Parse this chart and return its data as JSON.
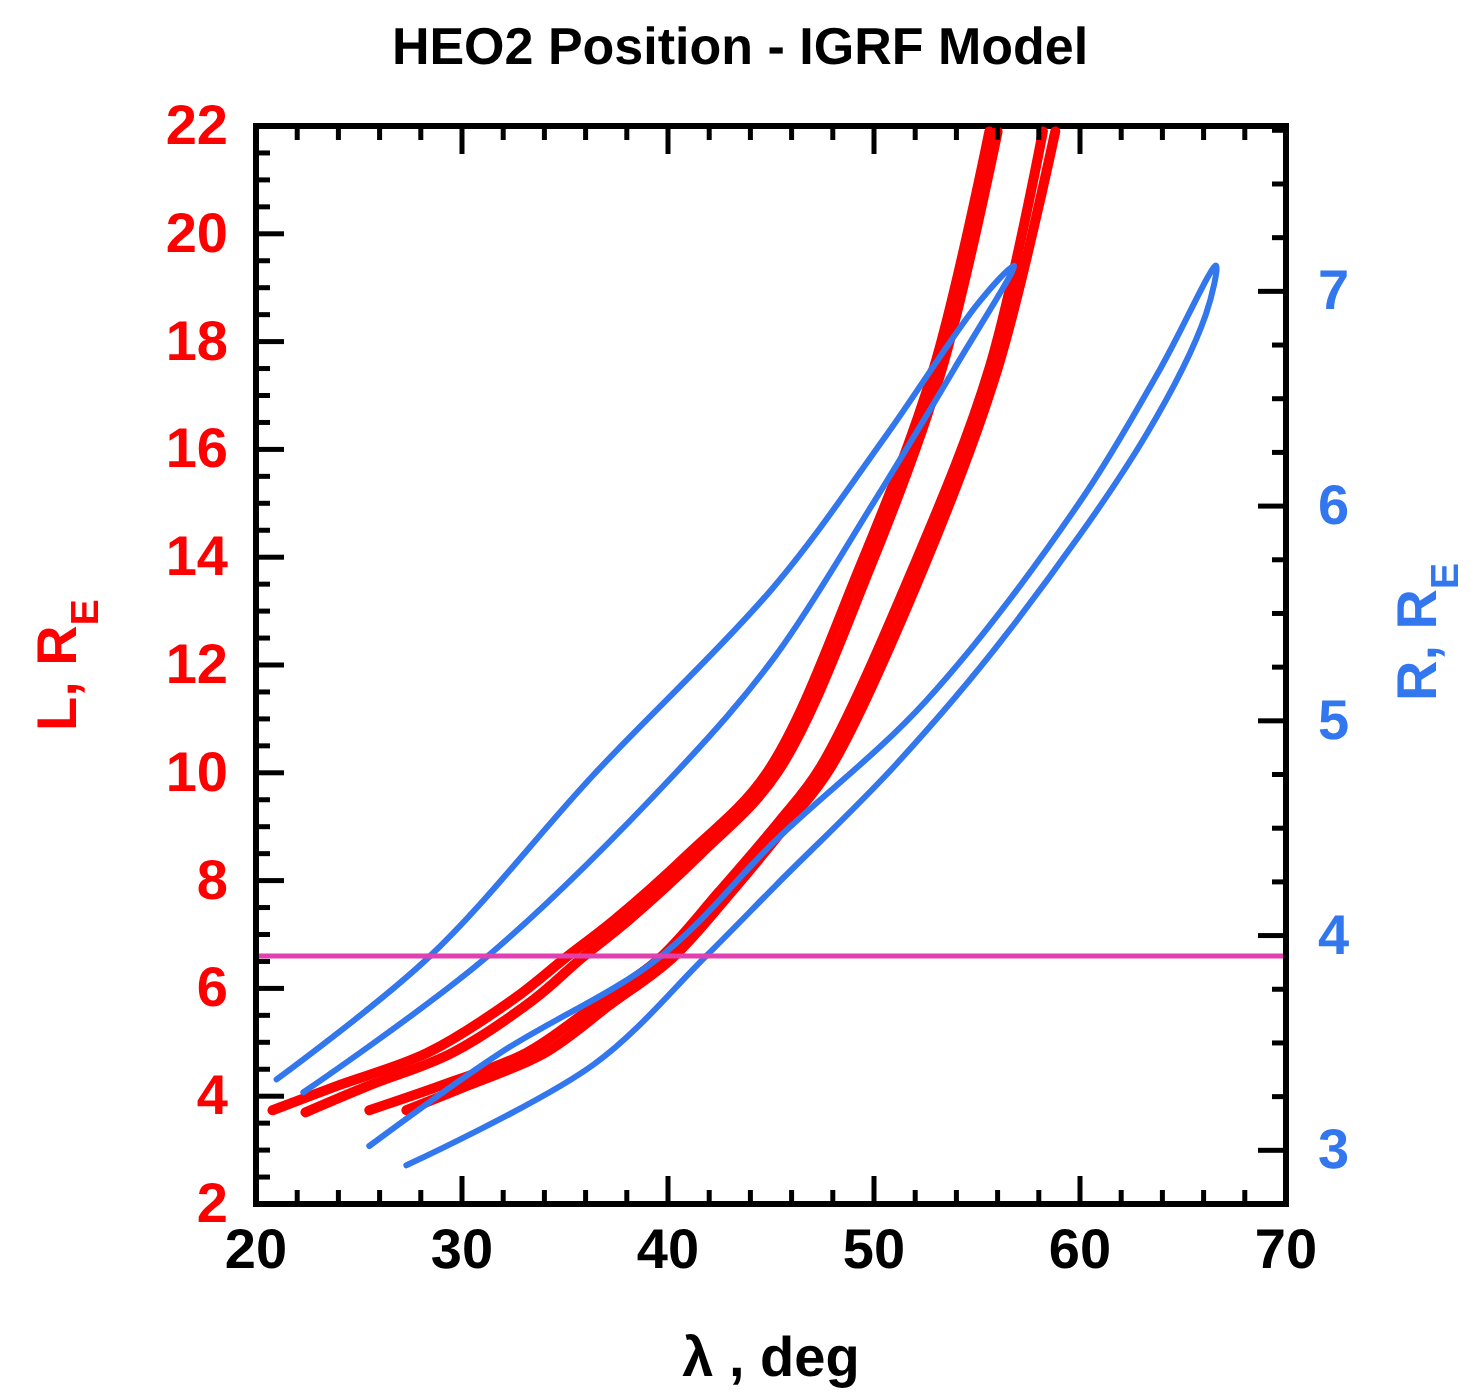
{
  "chart_data": {
    "type": "line",
    "title": "HEO2 Position - IGRF Model",
    "xlabel": "λ  , deg",
    "ylabel": "L, R$_{E}$",
    "y2label": "R, R$_{E}$",
    "xlim": [
      20,
      70
    ],
    "xticks": [
      20,
      {
        "value": 22,
        "label": null
      },
      {
        "value": 24,
        "label": null
      },
      {
        "value": 26,
        "label": null
      },
      {
        "value": 28,
        "label": null
      },
      30,
      {
        "value": 32,
        "label": null
      },
      {
        "value": 34,
        "label": null
      },
      {
        "value": 36,
        "label": null
      },
      {
        "value": 38,
        "label": null
      },
      40,
      {
        "value": 42,
        "label": null
      },
      {
        "value": 44,
        "label": null
      },
      {
        "value": 46,
        "label": null
      },
      {
        "value": 48,
        "label": null
      },
      50,
      {
        "value": 52,
        "label": null
      },
      {
        "value": 54,
        "label": null
      },
      {
        "value": 56,
        "label": null
      },
      {
        "value": 58,
        "label": null
      },
      60,
      {
        "value": 62,
        "label": null
      },
      {
        "value": 64,
        "label": null
      },
      {
        "value": 66,
        "label": null
      },
      {
        "value": 68,
        "label": null
      },
      70
    ],
    "ylim": [
      2,
      22
    ],
    "yticks": [
      2,
      {
        "value": 2.5,
        "label": null
      },
      {
        "value": 3,
        "label": null
      },
      {
        "value": 3.5,
        "label": null
      },
      4,
      {
        "value": 4.5,
        "label": null
      },
      {
        "value": 5,
        "label": null
      },
      {
        "value": 5.5,
        "label": null
      },
      6,
      {
        "value": 6.5,
        "label": null
      },
      {
        "value": 7,
        "label": null
      },
      {
        "value": 7.5,
        "label": null
      },
      8,
      {
        "value": 8.5,
        "label": null
      },
      {
        "value": 9,
        "label": null
      },
      {
        "value": 9.5,
        "label": null
      },
      10,
      {
        "value": 10.5,
        "label": null
      },
      {
        "value": 11,
        "label": null
      },
      {
        "value": 11.5,
        "label": null
      },
      12,
      {
        "value": 12.5,
        "label": null
      },
      {
        "value": 13,
        "label": null
      },
      {
        "value": 13.5,
        "label": null
      },
      14,
      {
        "value": 14.5,
        "label": null
      },
      {
        "value": 15,
        "label": null
      },
      {
        "value": 15.5,
        "label": null
      },
      16,
      {
        "value": 16.5,
        "label": null
      },
      {
        "value": 17,
        "label": null
      },
      {
        "value": 17.5,
        "label": null
      },
      18,
      {
        "value": 18.5,
        "label": null
      },
      {
        "value": 19,
        "label": null
      },
      {
        "value": 19.5,
        "label": null
      },
      20,
      {
        "value": 20.5,
        "label": null
      },
      {
        "value": 21,
        "label": null
      },
      {
        "value": 21.5,
        "label": null
      },
      22
    ],
    "y2lim": [
      2.75,
      7.77
    ],
    "y2ticks": [
      {
        "value": 2.75,
        "label": null
      },
      3,
      {
        "value": 3.25,
        "label": null
      },
      {
        "value": 3.5,
        "label": null
      },
      {
        "value": 3.75,
        "label": null
      },
      4,
      {
        "value": 4.25,
        "label": null
      },
      {
        "value": 4.5,
        "label": null
      },
      {
        "value": 4.75,
        "label": null
      },
      5,
      {
        "value": 5.25,
        "label": null
      },
      {
        "value": 5.5,
        "label": null
      },
      {
        "value": 5.75,
        "label": null
      },
      6,
      {
        "value": 6.25,
        "label": null
      },
      {
        "value": 6.5,
        "label": null
      },
      {
        "value": 6.75,
        "label": null
      },
      7,
      {
        "value": 7.25,
        "label": null
      },
      {
        "value": 7.5,
        "label": null
      },
      {
        "value": 7.75,
        "label": null
      }
    ],
    "grid": false,
    "ref_lines": [
      {
        "axis": "y",
        "value": 6.6,
        "color": "#e040b0"
      }
    ],
    "series": [
      {
        "color": "#ff0000",
        "x": [
          20.8,
          24,
          28.3,
          32.5,
          35.0,
          37.4,
          41,
          44.8,
          49.3,
          52.9,
          55.6
        ],
        "values": [
          3.74,
          4.2,
          4.8,
          5.8,
          6.56,
          7.27,
          8.5,
          10,
          13.8,
          17.5,
          21.9
        ]
      },
      {
        "color": "#ff0000",
        "x": [
          22.4,
          25.5,
          29.5,
          33.5,
          35.8,
          38.1,
          41.6,
          45.3,
          49.8,
          53.3,
          56.0
        ],
        "values": [
          3.7,
          4.2,
          4.8,
          5.8,
          6.56,
          7.27,
          8.5,
          10,
          13.8,
          17.5,
          21.9
        ]
      },
      {
        "color": "#ff0000",
        "x": [
          25.5,
          29,
          33.1,
          36.5,
          39.6,
          42.5,
          45.4,
          47.4,
          51.9,
          55.6,
          58.2
        ],
        "values": [
          3.74,
          4.2,
          4.8,
          5.7,
          6.56,
          7.8,
          9.1,
          10.1,
          13.8,
          17.5,
          21.9
        ]
      },
      {
        "color": "#ff0000",
        "x": [
          27.3,
          30.3,
          34,
          37.2,
          40.2,
          43.1,
          45.9,
          47.9,
          52.4,
          56.0,
          58.8
        ],
        "values": [
          3.74,
          4.2,
          4.8,
          5.7,
          6.56,
          7.8,
          9.1,
          10.1,
          13.8,
          17.5,
          21.9
        ]
      },
      {
        "color": "#3377ee",
        "axis": "y2",
        "x": [
          21.0,
          28.4,
          36.4,
          45.1,
          50.6,
          55.1,
          56.8,
          53.9,
          50.0,
          45.2,
          40.3,
          31.2,
          22.3
        ],
        "values": [
          3.33,
          3.9,
          4.75,
          5.62,
          6.33,
          6.95,
          7.12,
          6.64,
          6.02,
          5.3,
          4.75,
          3.9,
          3.27
        ]
      },
      {
        "color": "#3377ee",
        "axis": "y2",
        "x": [
          25.5,
          31.8,
          39.6,
          45.3,
          52.5,
          60.0,
          63.9,
          66.6,
          66.1,
          63.2,
          56.4,
          51.0,
          45.3,
          41.8,
          36.4,
          27.3
        ],
        "values": [
          3.02,
          3.45,
          3.9,
          4.45,
          5.09,
          6.02,
          6.64,
          7.12,
          6.89,
          6.33,
          5.4,
          4.79,
          4.24,
          3.9,
          3.4,
          2.93
        ]
      }
    ]
  }
}
